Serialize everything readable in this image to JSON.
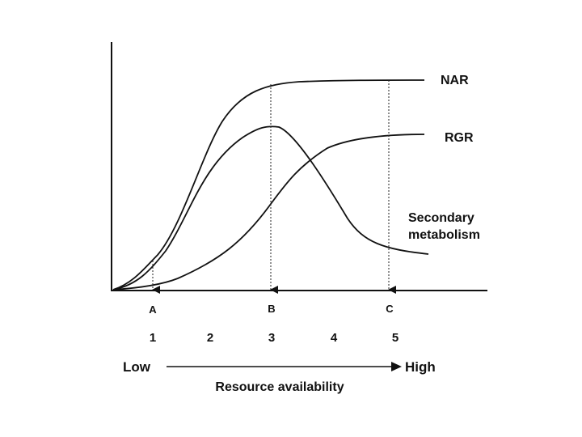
{
  "curves": {
    "nar": {
      "label": "NAR"
    },
    "rgr": {
      "label": "RGR"
    },
    "secondary": {
      "label_line1": "Secondary",
      "label_line2": "metabolism"
    }
  },
  "points": [
    {
      "letter": "A"
    },
    {
      "letter": "B"
    },
    {
      "letter": "C"
    }
  ],
  "stages": [
    "1",
    "2",
    "3",
    "4",
    "5"
  ],
  "resource_axis": {
    "low": "Low",
    "high": "High",
    "title": "Resource availability"
  },
  "colors": {
    "ink": "#111111",
    "background": "#ffffff"
  }
}
